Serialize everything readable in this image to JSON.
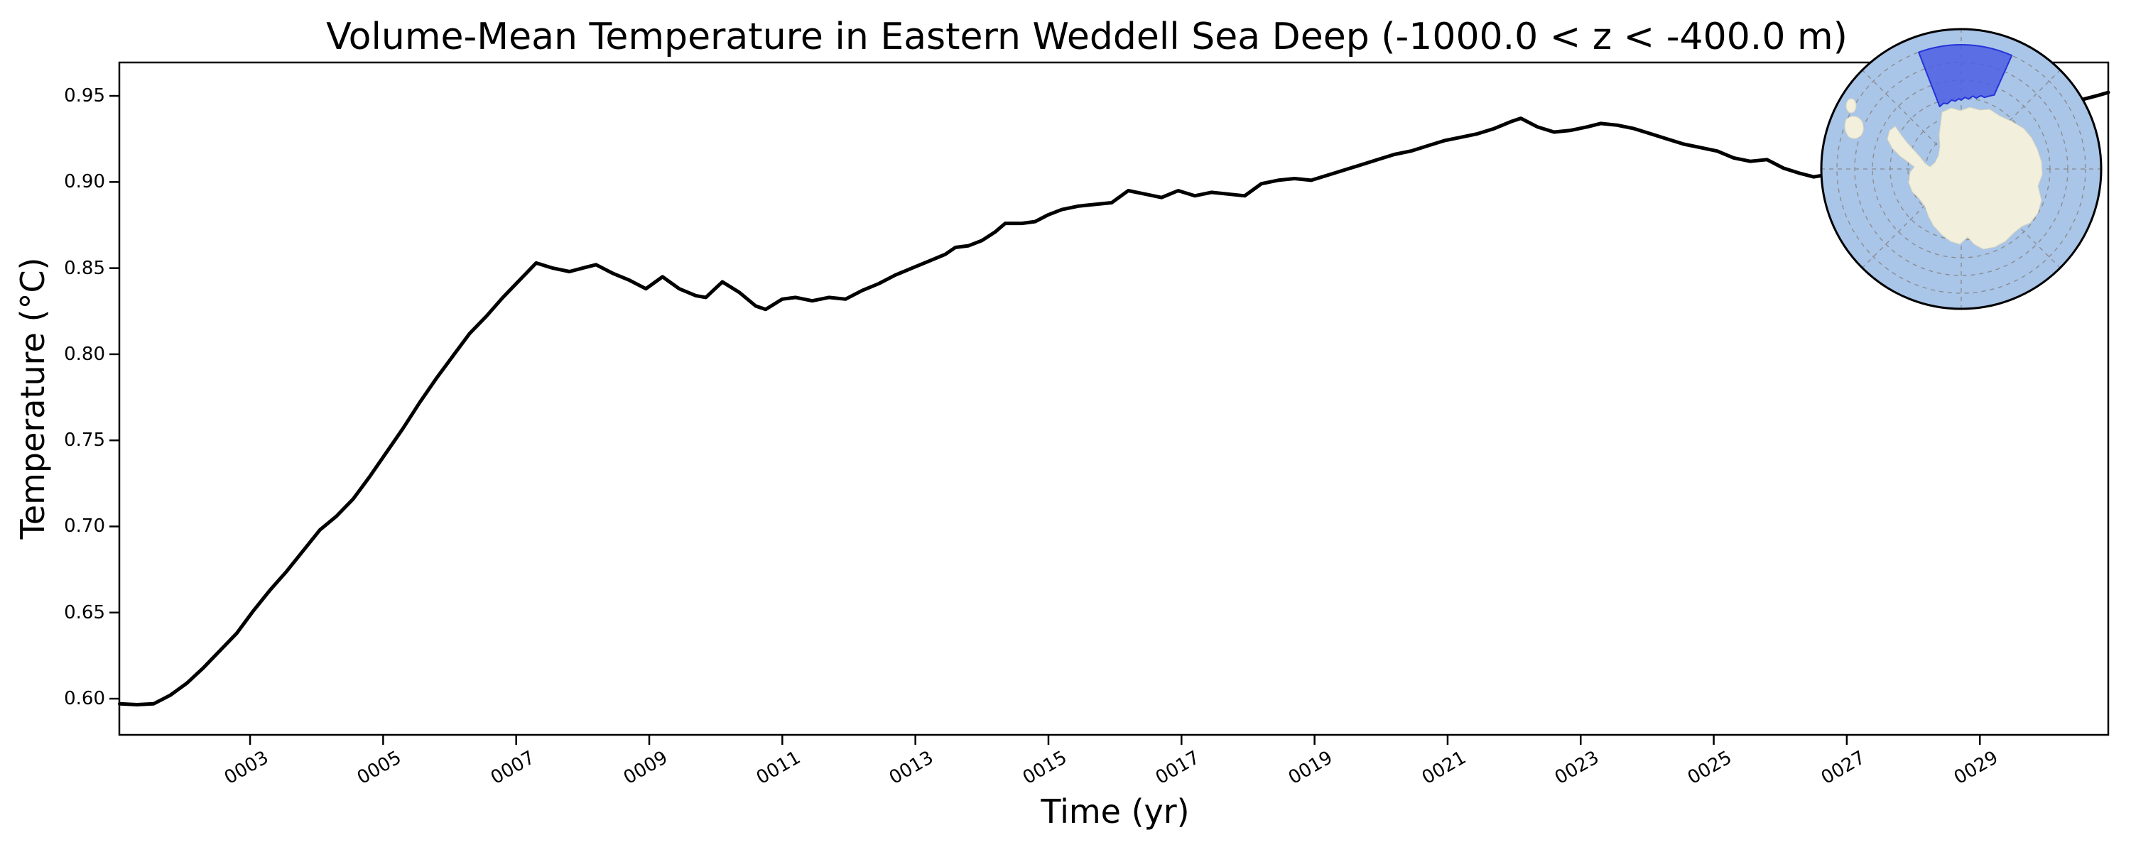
{
  "figure": {
    "background": "#ffffff"
  },
  "chart_data": {
    "type": "line",
    "title": "Volume-Mean Temperature in Eastern Weddell Sea Deep (-1000.0 < z < -400.0 m)",
    "xlabel": "Time (yr)",
    "ylabel": "Temperature (°C)",
    "xlim": [
      1.035,
      30.93
    ],
    "ylim": [
      0.579,
      0.9694
    ],
    "grid": false,
    "legend": "none",
    "line_color": "#000000",
    "axis_color": "#000000",
    "x_tick_labels": [
      "0003",
      "0005",
      "0007",
      "0009",
      "0011",
      "0013",
      "0015",
      "0017",
      "0019",
      "0021",
      "0023",
      "0025",
      "0027",
      "0029"
    ],
    "x_tick_values": [
      3,
      5,
      7,
      9,
      11,
      13,
      15,
      17,
      19,
      21,
      23,
      25,
      27,
      29
    ],
    "y_tick_labels": [
      "0.60",
      "0.65",
      "0.70",
      "0.75",
      "0.80",
      "0.85",
      "0.90",
      "0.95"
    ],
    "y_tick_values": [
      0.6,
      0.65,
      0.7,
      0.75,
      0.8,
      0.85,
      0.9,
      0.95
    ],
    "series": [
      {
        "name": "volume-mean temperature",
        "x": [
          1.04,
          1.3,
          1.55,
          1.8,
          2.05,
          2.3,
          2.55,
          2.8,
          3.05,
          3.3,
          3.55,
          3.8,
          4.05,
          4.3,
          4.55,
          4.8,
          5.05,
          5.3,
          5.55,
          5.8,
          6.05,
          6.3,
          6.55,
          6.8,
          7.05,
          7.3,
          7.55,
          7.8,
          8.0,
          8.2,
          8.45,
          8.7,
          8.95,
          9.2,
          9.45,
          9.7,
          9.85,
          10.1,
          10.35,
          10.6,
          10.75,
          11.0,
          11.2,
          11.45,
          11.7,
          11.95,
          12.2,
          12.45,
          12.7,
          12.95,
          13.2,
          13.45,
          13.6,
          13.8,
          14.0,
          14.2,
          14.35,
          14.6,
          14.8,
          15.0,
          15.2,
          15.45,
          15.7,
          15.95,
          16.2,
          16.45,
          16.7,
          16.95,
          17.2,
          17.45,
          17.7,
          17.95,
          18.2,
          18.45,
          18.7,
          18.95,
          19.2,
          19.45,
          19.7,
          19.95,
          20.2,
          20.45,
          20.7,
          20.95,
          21.2,
          21.45,
          21.7,
          21.95,
          22.1,
          22.35,
          22.6,
          22.85,
          23.1,
          23.3,
          23.55,
          23.8,
          24.05,
          24.3,
          24.55,
          24.8,
          25.05,
          25.3,
          25.55,
          25.8,
          26.05,
          26.3,
          26.5,
          27.0,
          27.5,
          28.0,
          28.5,
          29.0,
          29.5,
          30.0,
          30.3,
          30.55,
          30.75,
          30.93
        ],
        "y": [
          0.597,
          0.5965,
          0.597,
          0.602,
          0.609,
          0.618,
          0.628,
          0.638,
          0.651,
          0.663,
          0.674,
          0.686,
          0.698,
          0.706,
          0.716,
          0.729,
          0.743,
          0.757,
          0.772,
          0.786,
          0.799,
          0.812,
          0.822,
          0.833,
          0.843,
          0.853,
          0.85,
          0.848,
          0.85,
          0.852,
          0.847,
          0.843,
          0.838,
          0.845,
          0.838,
          0.834,
          0.833,
          0.842,
          0.836,
          0.828,
          0.826,
          0.832,
          0.833,
          0.831,
          0.833,
          0.832,
          0.837,
          0.841,
          0.846,
          0.85,
          0.854,
          0.858,
          0.862,
          0.863,
          0.866,
          0.871,
          0.876,
          0.876,
          0.877,
          0.881,
          0.884,
          0.886,
          0.887,
          0.888,
          0.895,
          0.893,
          0.891,
          0.895,
          0.892,
          0.894,
          0.893,
          0.892,
          0.899,
          0.901,
          0.902,
          0.901,
          0.904,
          0.907,
          0.91,
          0.913,
          0.916,
          0.918,
          0.921,
          0.924,
          0.926,
          0.928,
          0.931,
          0.935,
          0.937,
          0.932,
          0.929,
          0.93,
          0.932,
          0.934,
          0.933,
          0.931,
          0.928,
          0.925,
          0.922,
          0.92,
          0.918,
          0.914,
          0.912,
          0.913,
          0.908,
          0.905,
          0.903,
          0.906,
          0.912,
          0.918,
          0.925,
          0.931,
          0.938,
          0.943,
          0.946,
          0.948,
          0.95,
          0.952
        ]
      }
    ]
  },
  "inset_map": {
    "description": "south-polar-stereographic-antarctica-map",
    "ocean_color": "#a9c5e8",
    "land_color": "#f2efdc",
    "land_edge_color": "#d9d5bd",
    "region_fill": "#4d5ee3",
    "region_border": "#2533d8",
    "graticule_color": "#8a8a8a",
    "outline_color": "#000000"
  }
}
